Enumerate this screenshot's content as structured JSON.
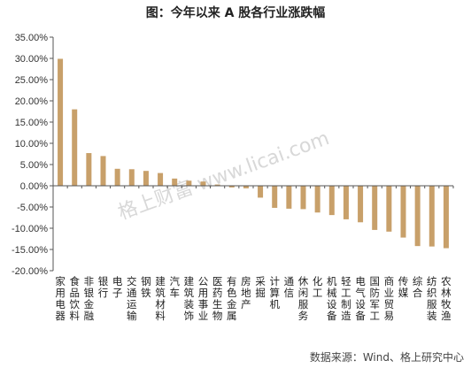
{
  "title": "图：今年以来 A 股各行业涨跌幅",
  "source": "数据来源：Wind、格上研究中心",
  "watermark": "格上财富 www.licai.com",
  "colors": {
    "bar": "#C8A06A",
    "axis": "#555555",
    "text": "#222222"
  },
  "chart_data": {
    "type": "bar",
    "title": "图：今年以来 A 股各行业涨跌幅",
    "xlabel": "",
    "ylabel": "",
    "ylim": [
      -20,
      35
    ],
    "ytick_step": 5,
    "ytick_labels": [
      "-20.00%",
      "-15.00%",
      "-10.00%",
      "-5.00%",
      "0.00%",
      "5.00%",
      "10.00%",
      "15.00%",
      "20.00%",
      "25.00%",
      "30.00%",
      "35.00%"
    ],
    "grid": false,
    "categories": [
      "家用电器",
      "食品饮料",
      "非银金融",
      "银行",
      "电子",
      "交通运输",
      "钢铁",
      "建筑材料",
      "汽车",
      "建筑装饰",
      "公用事业",
      "医药生物",
      "有色金属",
      "房地产",
      "采掘",
      "计算机",
      "通信",
      "休闲服务",
      "化工",
      "机械设备",
      "轻工制造",
      "电气设备",
      "国防军工",
      "商业贸易",
      "传媒",
      "综合",
      "纺织服装",
      "农林牧渔"
    ],
    "values": [
      29.9,
      18.0,
      7.7,
      7.0,
      4.0,
      3.9,
      3.5,
      3.0,
      1.7,
      1.2,
      1.0,
      0.3,
      -0.4,
      -0.6,
      -2.8,
      -5.2,
      -5.4,
      -5.5,
      -6.3,
      -6.9,
      -7.9,
      -8.6,
      -10.4,
      -10.8,
      -12.2,
      -14.2,
      -14.3,
      -14.7
    ]
  }
}
